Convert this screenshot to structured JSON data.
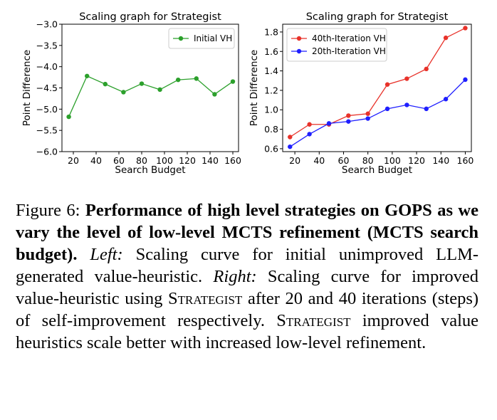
{
  "chart_data": [
    {
      "type": "line",
      "title": "Scaling graph for Strategist",
      "xlabel": "Search Budget",
      "ylabel": "Point Difference",
      "xlim": [
        10,
        165
      ],
      "ylim": [
        -6.0,
        -3.0
      ],
      "xticks": [
        20,
        40,
        60,
        80,
        100,
        120,
        140,
        160
      ],
      "yticks": [
        -6.0,
        -5.5,
        -5.0,
        -4.5,
        -4.0,
        -3.5,
        -3.0
      ],
      "yticklabels": [
        "−6.0",
        "−5.5",
        "−5.0",
        "−4.5",
        "−4.0",
        "−3.5",
        "−3.0"
      ],
      "legend_position": "top-right",
      "series": [
        {
          "name": "Initial VH",
          "color": "#2ca02c",
          "x": [
            16,
            32,
            48,
            64,
            80,
            96,
            112,
            128,
            144,
            160
          ],
          "y": [
            -5.18,
            -4.22,
            -4.41,
            -4.6,
            -4.4,
            -4.54,
            -4.31,
            -4.28,
            -4.65,
            -4.35
          ]
        }
      ]
    },
    {
      "type": "line",
      "title": "Scaling graph for Strategist",
      "xlabel": "Search Budget",
      "ylabel": "Point Difference",
      "xlim": [
        10,
        165
      ],
      "ylim": [
        0.57,
        1.88
      ],
      "xticks": [
        20,
        40,
        60,
        80,
        100,
        120,
        140,
        160
      ],
      "yticks": [
        0.6,
        0.8,
        1.0,
        1.2,
        1.4,
        1.6,
        1.8
      ],
      "yticklabels": [
        "0.6",
        "0.8",
        "1.0",
        "1.2",
        "1.4",
        "1.6",
        "1.8"
      ],
      "legend_position": "top-left",
      "series": [
        {
          "name": "40th-Iteration VH",
          "color": "#e8322a",
          "x": [
            16,
            32,
            48,
            64,
            80,
            96,
            112,
            128,
            144,
            160
          ],
          "y": [
            0.72,
            0.85,
            0.85,
            0.94,
            0.96,
            1.26,
            1.32,
            1.42,
            1.74,
            1.84
          ]
        },
        {
          "name": "20th-Iteration VH",
          "color": "#1f1fff",
          "x": [
            16,
            32,
            48,
            64,
            80,
            96,
            112,
            128,
            144,
            160
          ],
          "y": [
            0.62,
            0.75,
            0.86,
            0.88,
            0.91,
            1.01,
            1.05,
            1.01,
            1.11,
            1.31
          ]
        }
      ]
    }
  ],
  "caption": {
    "label": "Figure 6:",
    "bold_text": "Performance of high level strategies on GOPS as we vary the level of low-level MCTS refinement (MCTS search budget).",
    "left_label": "Left:",
    "left_text": "Scaling curve for initial unimproved LLM-generated value-heuristic.",
    "right_label": "Right:",
    "right_text_1": "Scaling curve for improved value-heuristic using",
    "strategist": "Strategist",
    "right_text_2": "after 20 and 40 iterations (steps) of self-improvement respectively.",
    "strategist_2": "Strategist",
    "final_text": "improved value heuristics scale better with increased low-level refinement."
  }
}
